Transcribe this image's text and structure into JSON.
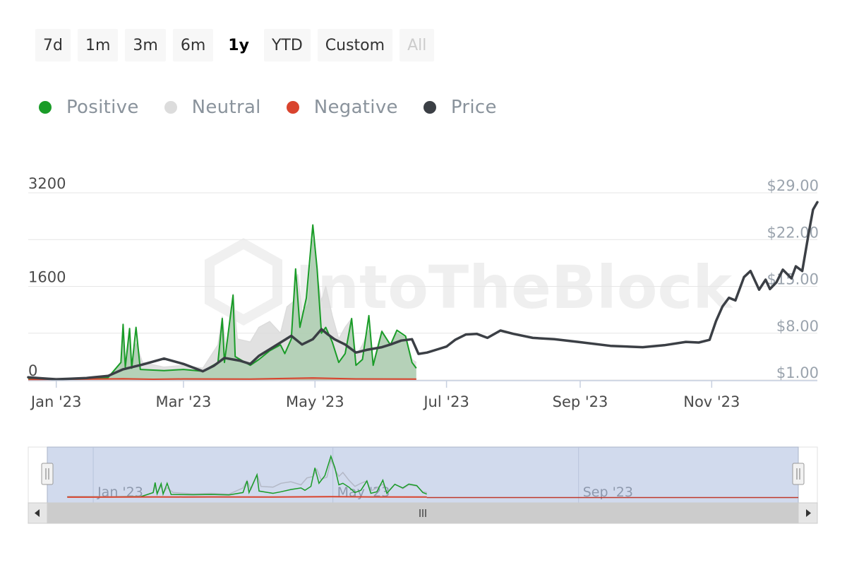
{
  "range_selector": {
    "buttons": [
      {
        "label": "7d",
        "state": "normal"
      },
      {
        "label": "1m",
        "state": "normal"
      },
      {
        "label": "3m",
        "state": "normal"
      },
      {
        "label": "6m",
        "state": "normal"
      },
      {
        "label": "1y",
        "state": "active"
      },
      {
        "label": "YTD",
        "state": "normal"
      },
      {
        "label": "Custom",
        "state": "normal"
      },
      {
        "label": "All",
        "state": "disabled"
      }
    ]
  },
  "legend": {
    "items": [
      {
        "label": "Positive",
        "color": "#1a9c28"
      },
      {
        "label": "Neutral",
        "color": "#dcdcdc"
      },
      {
        "label": "Negative",
        "color": "#d9442e"
      },
      {
        "label": "Price",
        "color": "#3b3f45"
      }
    ]
  },
  "watermark": "IntoTheBlock",
  "chart_data": {
    "type": "area",
    "grid": true,
    "legend_position": "top-left",
    "x_range": [
      "2022-12-19",
      "2023-12-20"
    ],
    "x_ticks": [
      {
        "date": "2023-01-01",
        "label": "Jan '23"
      },
      {
        "date": "2023-03-01",
        "label": "Mar '23"
      },
      {
        "date": "2023-05-01",
        "label": "May '23"
      },
      {
        "date": "2023-07-01",
        "label": "Jul '23"
      },
      {
        "date": "2023-09-01",
        "label": "Sep '23"
      },
      {
        "date": "2023-11-01",
        "label": "Nov '23"
      }
    ],
    "y_left": {
      "ylim": [
        0,
        3200
      ],
      "ticks": [
        0,
        1600,
        3200
      ]
    },
    "y_right": {
      "ylim": [
        1,
        29
      ],
      "ticks": [
        "$1.00",
        "$8.00",
        "$15.00",
        "$22.00",
        "$29.00"
      ]
    },
    "navigator": {
      "tick_labels": [
        "Jan '23",
        "May '23",
        "Sep '23"
      ]
    },
    "series": [
      {
        "name": "Neutral",
        "axis": "left",
        "color": "#dcdcdc",
        "points": [
          [
            "2022-12-19",
            40
          ],
          [
            "2023-01-10",
            30
          ],
          [
            "2023-01-25",
            60
          ],
          [
            "2023-01-31",
            280
          ],
          [
            "2023-02-01",
            700
          ],
          [
            "2023-02-02",
            220
          ],
          [
            "2023-02-04",
            760
          ],
          [
            "2023-02-05",
            260
          ],
          [
            "2023-02-07",
            620
          ],
          [
            "2023-02-10",
            300
          ],
          [
            "2023-02-20",
            220
          ],
          [
            "2023-03-01",
            250
          ],
          [
            "2023-03-10",
            200
          ],
          [
            "2023-03-17",
            600
          ],
          [
            "2023-03-19",
            1080
          ],
          [
            "2023-03-21",
            500
          ],
          [
            "2023-03-24",
            1470
          ],
          [
            "2023-03-26",
            700
          ],
          [
            "2023-04-01",
            650
          ],
          [
            "2023-04-05",
            900
          ],
          [
            "2023-04-10",
            1000
          ],
          [
            "2023-04-15",
            800
          ],
          [
            "2023-04-18",
            1250
          ],
          [
            "2023-04-21",
            1340
          ],
          [
            "2023-04-23",
            1800
          ],
          [
            "2023-04-25",
            1150
          ],
          [
            "2023-04-28",
            1300
          ],
          [
            "2023-04-30",
            2400
          ],
          [
            "2023-05-02",
            1800
          ],
          [
            "2023-05-04",
            1350
          ],
          [
            "2023-05-06",
            1600
          ],
          [
            "2023-05-09",
            1100
          ],
          [
            "2023-05-12",
            700
          ],
          [
            "2023-05-15",
            900
          ],
          [
            "2023-05-18",
            1050
          ],
          [
            "2023-05-20",
            400
          ],
          [
            "2023-05-23",
            600
          ],
          [
            "2023-05-26",
            850
          ],
          [
            "2023-05-28",
            300
          ],
          [
            "2023-06-01",
            850
          ],
          [
            "2023-06-05",
            550
          ],
          [
            "2023-06-08",
            800
          ],
          [
            "2023-06-12",
            720
          ],
          [
            "2023-06-15",
            350
          ],
          [
            "2023-06-17",
            300
          ]
        ]
      },
      {
        "name": "Positive",
        "axis": "left",
        "color": "#1a9c28",
        "points": [
          [
            "2022-12-19",
            20
          ],
          [
            "2023-01-10",
            15
          ],
          [
            "2023-01-25",
            40
          ],
          [
            "2023-01-31",
            300
          ],
          [
            "2023-02-01",
            950
          ],
          [
            "2023-02-02",
            220
          ],
          [
            "2023-02-04",
            880
          ],
          [
            "2023-02-05",
            200
          ],
          [
            "2023-02-07",
            900
          ],
          [
            "2023-02-09",
            180
          ],
          [
            "2023-02-20",
            160
          ],
          [
            "2023-03-01",
            180
          ],
          [
            "2023-03-10",
            150
          ],
          [
            "2023-03-17",
            300
          ],
          [
            "2023-03-19",
            1050
          ],
          [
            "2023-03-20",
            300
          ],
          [
            "2023-03-24",
            1450
          ],
          [
            "2023-03-25",
            400
          ],
          [
            "2023-04-01",
            250
          ],
          [
            "2023-04-05",
            350
          ],
          [
            "2023-04-10",
            500
          ],
          [
            "2023-04-15",
            600
          ],
          [
            "2023-04-17",
            450
          ],
          [
            "2023-04-20",
            700
          ],
          [
            "2023-04-22",
            1900
          ],
          [
            "2023-04-24",
            900
          ],
          [
            "2023-04-27",
            1400
          ],
          [
            "2023-04-30",
            2650
          ],
          [
            "2023-05-02",
            1900
          ],
          [
            "2023-05-04",
            800
          ],
          [
            "2023-05-06",
            900
          ],
          [
            "2023-05-09",
            650
          ],
          [
            "2023-05-12",
            300
          ],
          [
            "2023-05-15",
            450
          ],
          [
            "2023-05-18",
            1050
          ],
          [
            "2023-05-20",
            250
          ],
          [
            "2023-05-23",
            350
          ],
          [
            "2023-05-26",
            1100
          ],
          [
            "2023-05-28",
            250
          ],
          [
            "2023-06-01",
            830
          ],
          [
            "2023-06-05",
            600
          ],
          [
            "2023-06-08",
            850
          ],
          [
            "2023-06-12",
            750
          ],
          [
            "2023-06-15",
            300
          ],
          [
            "2023-06-17",
            200
          ]
        ]
      },
      {
        "name": "Negative",
        "axis": "left",
        "color": "#d9442e",
        "points": [
          [
            "2022-12-19",
            5
          ],
          [
            "2023-02-01",
            20
          ],
          [
            "2023-02-15",
            12
          ],
          [
            "2023-03-01",
            18
          ],
          [
            "2023-04-01",
            15
          ],
          [
            "2023-04-30",
            35
          ],
          [
            "2023-05-20",
            18
          ],
          [
            "2023-06-17",
            15
          ]
        ]
      },
      {
        "name": "Price",
        "axis": "right",
        "color": "#3b3f45",
        "points": [
          [
            "2022-12-19",
            1.4
          ],
          [
            "2023-01-01",
            1.1
          ],
          [
            "2023-01-15",
            1.3
          ],
          [
            "2023-01-25",
            1.6
          ],
          [
            "2023-02-01",
            2.6
          ],
          [
            "2023-02-10",
            3.3
          ],
          [
            "2023-02-20",
            4.2
          ],
          [
            "2023-03-01",
            3.4
          ],
          [
            "2023-03-10",
            2.3
          ],
          [
            "2023-03-15",
            3.1
          ],
          [
            "2023-03-20",
            4.3
          ],
          [
            "2023-03-27",
            3.9
          ],
          [
            "2023-04-01",
            3.4
          ],
          [
            "2023-04-05",
            4.6
          ],
          [
            "2023-04-10",
            5.6
          ],
          [
            "2023-04-15",
            6.6
          ],
          [
            "2023-04-20",
            7.6
          ],
          [
            "2023-04-25",
            6.3
          ],
          [
            "2023-04-30",
            7.1
          ],
          [
            "2023-05-04",
            8.6
          ],
          [
            "2023-05-07",
            7.8
          ],
          [
            "2023-05-10",
            7.1
          ],
          [
            "2023-05-15",
            6.3
          ],
          [
            "2023-05-20",
            5.1
          ],
          [
            "2023-05-25",
            5.5
          ],
          [
            "2023-06-01",
            5.9
          ],
          [
            "2023-06-05",
            6.3
          ],
          [
            "2023-06-10",
            6.9
          ],
          [
            "2023-06-15",
            7.1
          ],
          [
            "2023-06-18",
            4.9
          ],
          [
            "2023-06-22",
            5.1
          ],
          [
            "2023-06-27",
            5.6
          ],
          [
            "2023-07-01",
            6.0
          ],
          [
            "2023-07-05",
            7.0
          ],
          [
            "2023-07-10",
            7.8
          ],
          [
            "2023-07-15",
            7.9
          ],
          [
            "2023-07-20",
            7.3
          ],
          [
            "2023-07-26",
            8.4
          ],
          [
            "2023-08-01",
            7.9
          ],
          [
            "2023-08-10",
            7.3
          ],
          [
            "2023-08-20",
            7.1
          ],
          [
            "2023-08-31",
            6.7
          ],
          [
            "2023-09-15",
            6.1
          ],
          [
            "2023-09-30",
            5.9
          ],
          [
            "2023-10-10",
            6.2
          ],
          [
            "2023-10-20",
            6.7
          ],
          [
            "2023-10-26",
            6.6
          ],
          [
            "2023-10-31",
            7.0
          ],
          [
            "2023-11-03",
            9.8
          ],
          [
            "2023-11-06",
            12.0
          ],
          [
            "2023-11-09",
            13.3
          ],
          [
            "2023-11-12",
            12.9
          ],
          [
            "2023-11-16",
            16.4
          ],
          [
            "2023-11-19",
            17.3
          ],
          [
            "2023-11-23",
            14.5
          ],
          [
            "2023-11-26",
            16.0
          ],
          [
            "2023-11-28",
            14.6
          ],
          [
            "2023-12-01",
            15.6
          ],
          [
            "2023-12-04",
            17.5
          ],
          [
            "2023-12-08",
            16.2
          ],
          [
            "2023-12-10",
            18.0
          ],
          [
            "2023-12-13",
            17.3
          ],
          [
            "2023-12-16",
            23.0
          ],
          [
            "2023-12-18",
            26.5
          ],
          [
            "2023-12-20",
            27.6
          ]
        ]
      }
    ]
  }
}
